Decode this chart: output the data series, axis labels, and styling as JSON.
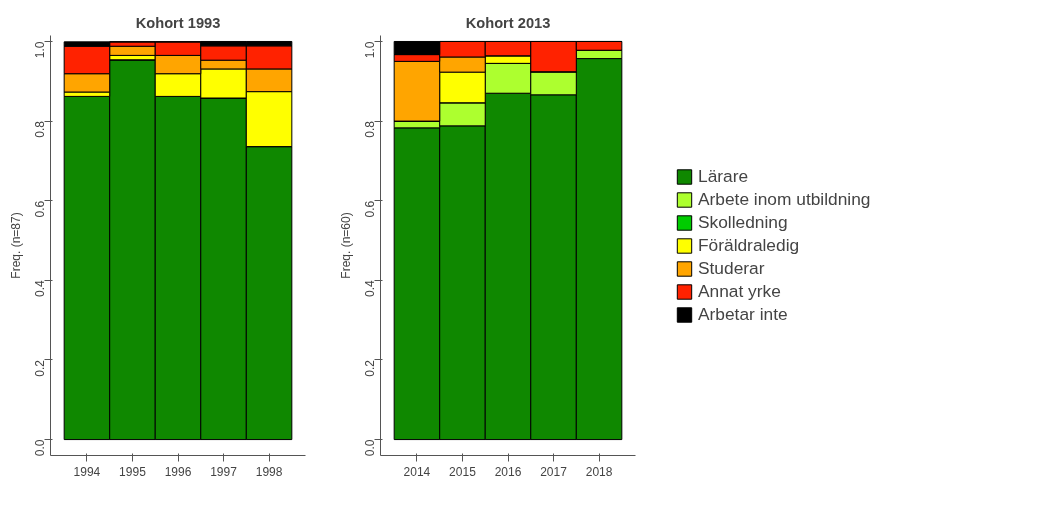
{
  "chart_data": [
    {
      "type": "bar",
      "stacked": true,
      "title": "Kohort 1993",
      "ylabel": "Freq. (n=87)",
      "categories": [
        "1994",
        "1995",
        "1996",
        "1997",
        "1998"
      ],
      "ylim": [
        0,
        1
      ],
      "yticks": [
        {
          "value": 0,
          "label": "0.0"
        },
        {
          "value": 0.2,
          "label": "0.2"
        },
        {
          "value": 0.4,
          "label": "0.4"
        },
        {
          "value": 0.6,
          "label": "0.6"
        },
        {
          "value": 0.8,
          "label": "0.8"
        },
        {
          "value": 1,
          "label": "1.0"
        }
      ],
      "legend": false,
      "series": [
        {
          "color": "#0f8800",
          "values": [
            0.862,
            0.954,
            0.862,
            0.858,
            0.736
          ]
        },
        {
          "color": "#adff2f",
          "values": [
            0,
            0,
            0,
            0,
            0
          ]
        },
        {
          "color": "#00cc00",
          "values": [
            0,
            0,
            0,
            0,
            0
          ]
        },
        {
          "color": "#ffff00",
          "values": [
            0.011,
            0.011,
            0.057,
            0.073,
            0.138
          ]
        },
        {
          "color": "#ffa500",
          "values": [
            0.046,
            0.023,
            0.046,
            0.022,
            0.057
          ]
        },
        {
          "color": "#ff2200",
          "values": [
            0.069,
            0.011,
            0.034,
            0.036,
            0.058
          ]
        },
        {
          "color": "#000000",
          "values": [
            0.011,
            0,
            0,
            0.011,
            0.011
          ]
        }
      ]
    },
    {
      "type": "bar",
      "stacked": true,
      "title": "Kohort 2013",
      "ylabel": "Freq. (n=60)",
      "categories": [
        "2014",
        "2015",
        "2016",
        "2017",
        "2018"
      ],
      "ylim": [
        0,
        1
      ],
      "yticks": [
        {
          "value": 0,
          "label": "0.0"
        },
        {
          "value": 0.2,
          "label": "0.2"
        },
        {
          "value": 0.4,
          "label": "0.4"
        },
        {
          "value": 0.6,
          "label": "0.6"
        },
        {
          "value": 0.8,
          "label": "0.8"
        },
        {
          "value": 1,
          "label": "1.0"
        }
      ],
      "legend": "right",
      "series": [
        {
          "name": "Lärare",
          "color": "#0f8800",
          "values": [
            0.783,
            0.788,
            0.87,
            0.866,
            0.957
          ]
        },
        {
          "name": "Arbete inom utbildning",
          "color": "#adff2f",
          "values": [
            0.017,
            0.058,
            0.075,
            0.058,
            0.021
          ]
        },
        {
          "name": "Skolledning",
          "color": "#00cc00",
          "values": [
            0,
            0,
            0,
            0,
            0
          ]
        },
        {
          "name": "Föräldraledig",
          "color": "#ffff00",
          "values": [
            0,
            0.077,
            0.019,
            0,
            0
          ]
        },
        {
          "name": "Studerar",
          "color": "#ffa500",
          "values": [
            0.15,
            0.038,
            0,
            0,
            0
          ]
        },
        {
          "name": "Annat yrke",
          "color": "#ff2200",
          "values": [
            0.017,
            0.039,
            0.036,
            0.076,
            0.022
          ]
        },
        {
          "name": "Arbetar inte",
          "color": "#000000",
          "values": [
            0.033,
            0,
            0,
            0,
            0
          ]
        }
      ]
    }
  ]
}
